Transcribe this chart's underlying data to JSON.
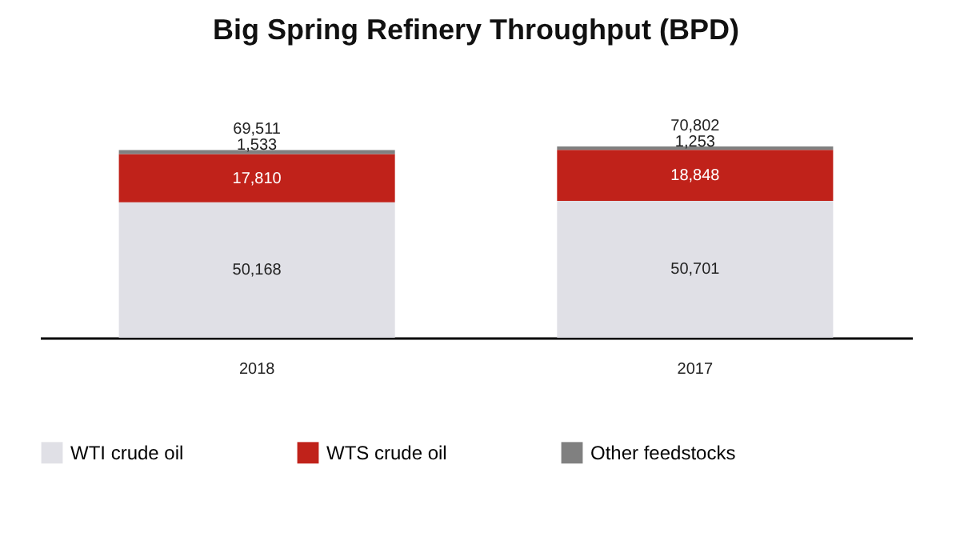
{
  "chart_data": {
    "type": "bar",
    "title": "Big Spring Refinery Throughput (BPD)",
    "categories": [
      "2018",
      "2017"
    ],
    "stacked": true,
    "tick_labels": "x",
    "legend": "bottom",
    "grid": false,
    "series": [
      {
        "name": "WTI crude oil",
        "color": "#e0e0e6",
        "values": [
          50168,
          50701
        ],
        "value_labels": [
          "50,168",
          "50,701"
        ]
      },
      {
        "name": "WTS crude oil",
        "color": "#c0221a",
        "values": [
          17810,
          18848
        ],
        "value_labels": [
          "17,810",
          "18,848"
        ]
      },
      {
        "name": "Other feedstocks",
        "color": "#808080",
        "values": [
          1533,
          1253
        ],
        "value_labels": [
          "1,533",
          "1,253"
        ]
      }
    ],
    "totals": [
      "69,511",
      "70,802"
    ]
  }
}
